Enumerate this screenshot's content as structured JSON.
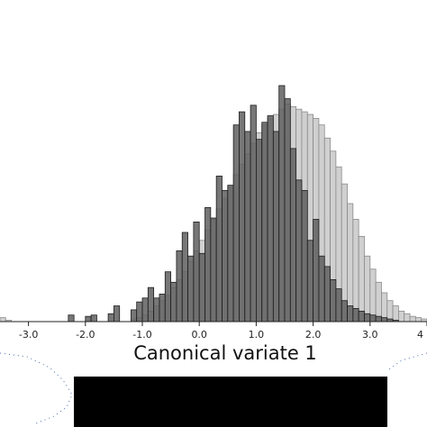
{
  "chart_data": {
    "type": "bar",
    "title": "",
    "xlabel": "Canonical variate 1",
    "ylabel": "",
    "xlim": [
      -3.5,
      4.0
    ],
    "ticks": [
      {
        "value": -3.0,
        "label": "-3.0"
      },
      {
        "value": -2.0,
        "label": "-2.0"
      },
      {
        "value": -1.0,
        "label": "-1.0"
      },
      {
        "value": 0.0,
        "label": "0.0"
      },
      {
        "value": 1.0,
        "label": "1.0"
      },
      {
        "value": 2.0,
        "label": "2.0"
      },
      {
        "value": 3.0,
        "label": "3.0"
      },
      {
        "value": 4.0,
        "label": "4"
      }
    ],
    "bin_width": 0.1,
    "bin_start": -3.5,
    "grid": false,
    "legend": "none",
    "series": [
      {
        "color": "#5f5f5f",
        "values": [
          0,
          0,
          0,
          0,
          0,
          0,
          0,
          0,
          0,
          0,
          0,
          0,
          5,
          0,
          0,
          4,
          5,
          0,
          0,
          6,
          12,
          0,
          0,
          9,
          15,
          18,
          26,
          18,
          21,
          38,
          30,
          54,
          68,
          50,
          76,
          52,
          87,
          79,
          111,
          100,
          104,
          150,
          160,
          145,
          165,
          139,
          152,
          157,
          145,
          180,
          170,
          132,
          108,
          100,
          62,
          78,
          50,
          42,
          32,
          25,
          16,
          12,
          10,
          8,
          6,
          5,
          4,
          3,
          2,
          1,
          0,
          0,
          0,
          0,
          0
        ]
      },
      {
        "color": "#d0d0d0",
        "values": [
          3,
          1,
          0,
          0,
          0,
          0,
          0,
          0,
          0,
          0,
          0,
          0,
          0,
          0,
          0,
          0,
          0,
          0,
          0,
          0,
          0,
          0,
          0,
          2,
          3,
          5,
          8,
          12,
          16,
          20,
          26,
          32,
          38,
          46,
          54,
          62,
          70,
          78,
          86,
          94,
          103,
          112,
          120,
          128,
          136,
          144,
          150,
          155,
          158,
          162,
          166,
          164,
          162,
          160,
          158,
          155,
          150,
          140,
          130,
          118,
          105,
          90,
          78,
          65,
          50,
          40,
          30,
          22,
          16,
          12,
          8,
          6,
          4,
          3,
          2
        ]
      }
    ]
  }
}
